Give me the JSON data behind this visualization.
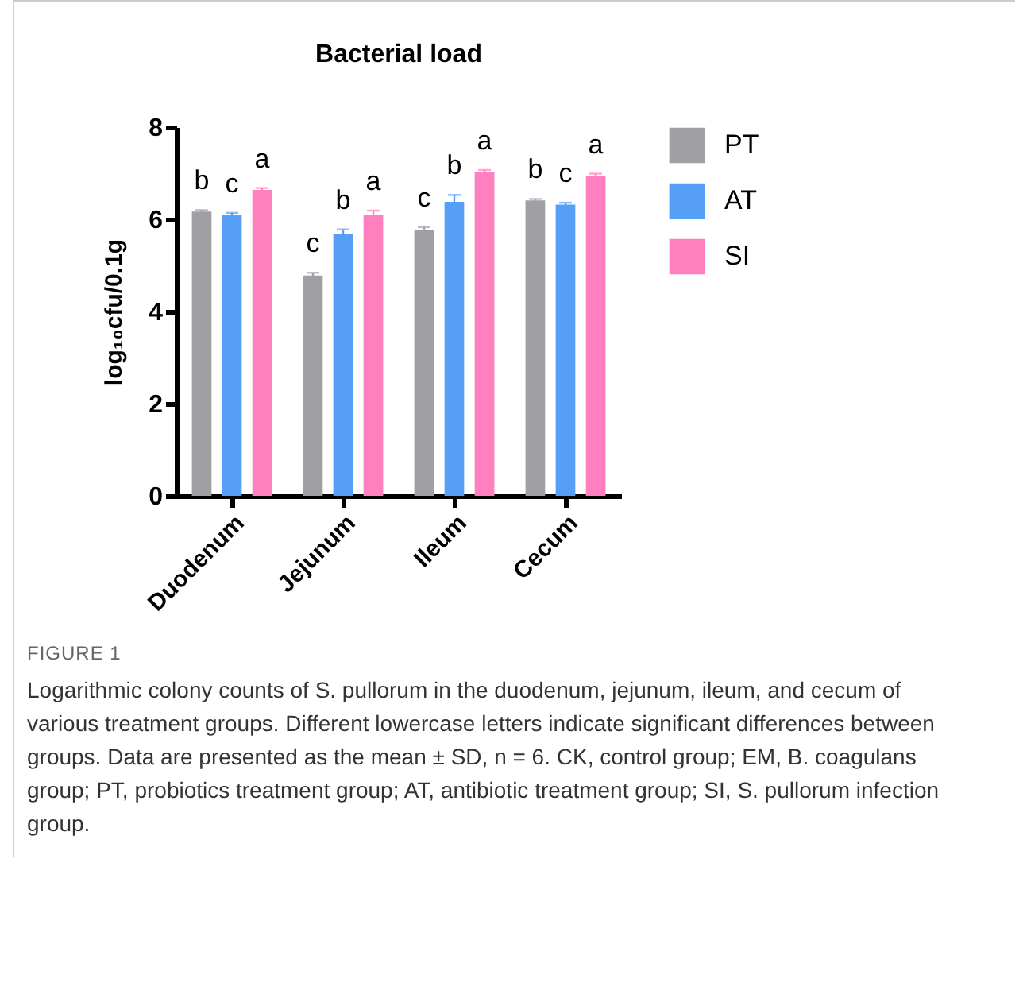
{
  "chart_data": {
    "type": "bar",
    "title": "Bacterial load",
    "ylabel": "log₁₀cfu/0.1g",
    "categories": [
      "Duodenum",
      "Jejunum",
      "Ileum",
      "Cecum"
    ],
    "series": [
      {
        "name": "PT",
        "color": "#a0a0a4",
        "values": [
          6.17,
          4.78,
          5.77,
          6.41
        ],
        "errors": [
          0.03,
          0.06,
          0.06,
          0.03
        ],
        "value_labels": [
          "b",
          "c",
          "c",
          "b"
        ]
      },
      {
        "name": "AT",
        "color": "#559ff7",
        "values": [
          6.1,
          5.68,
          6.38,
          6.32
        ],
        "errors": [
          0.04,
          0.1,
          0.15,
          0.04
        ],
        "value_labels": [
          "c",
          "b",
          "b",
          "c"
        ]
      },
      {
        "name": "SI",
        "color": "#ff7fbf",
        "values": [
          6.64,
          6.09,
          7.03,
          6.95
        ],
        "errors": [
          0.04,
          0.1,
          0.04,
          0.04
        ],
        "value_labels": [
          "a",
          "a",
          "a",
          "a"
        ]
      }
    ],
    "ylim": [
      0,
      8
    ],
    "yticks": [
      0,
      2,
      4,
      6,
      8
    ],
    "grid": false,
    "legend": "top right",
    "annotations": [
      "FIGURE 1",
      "Logarithmic colony counts of S. pullorum in the duodenum, jejunum, ileum, and cecum of various treatment groups. Different lowercase letters indicate significant differences between groups. Data are presented as the mean ± SD, n = 6. CK, control group; EM, B. coagulans group; PT, probiotics treatment group; AT, antibiotic treatment group; SI, S. pullorum infection group."
    ]
  }
}
